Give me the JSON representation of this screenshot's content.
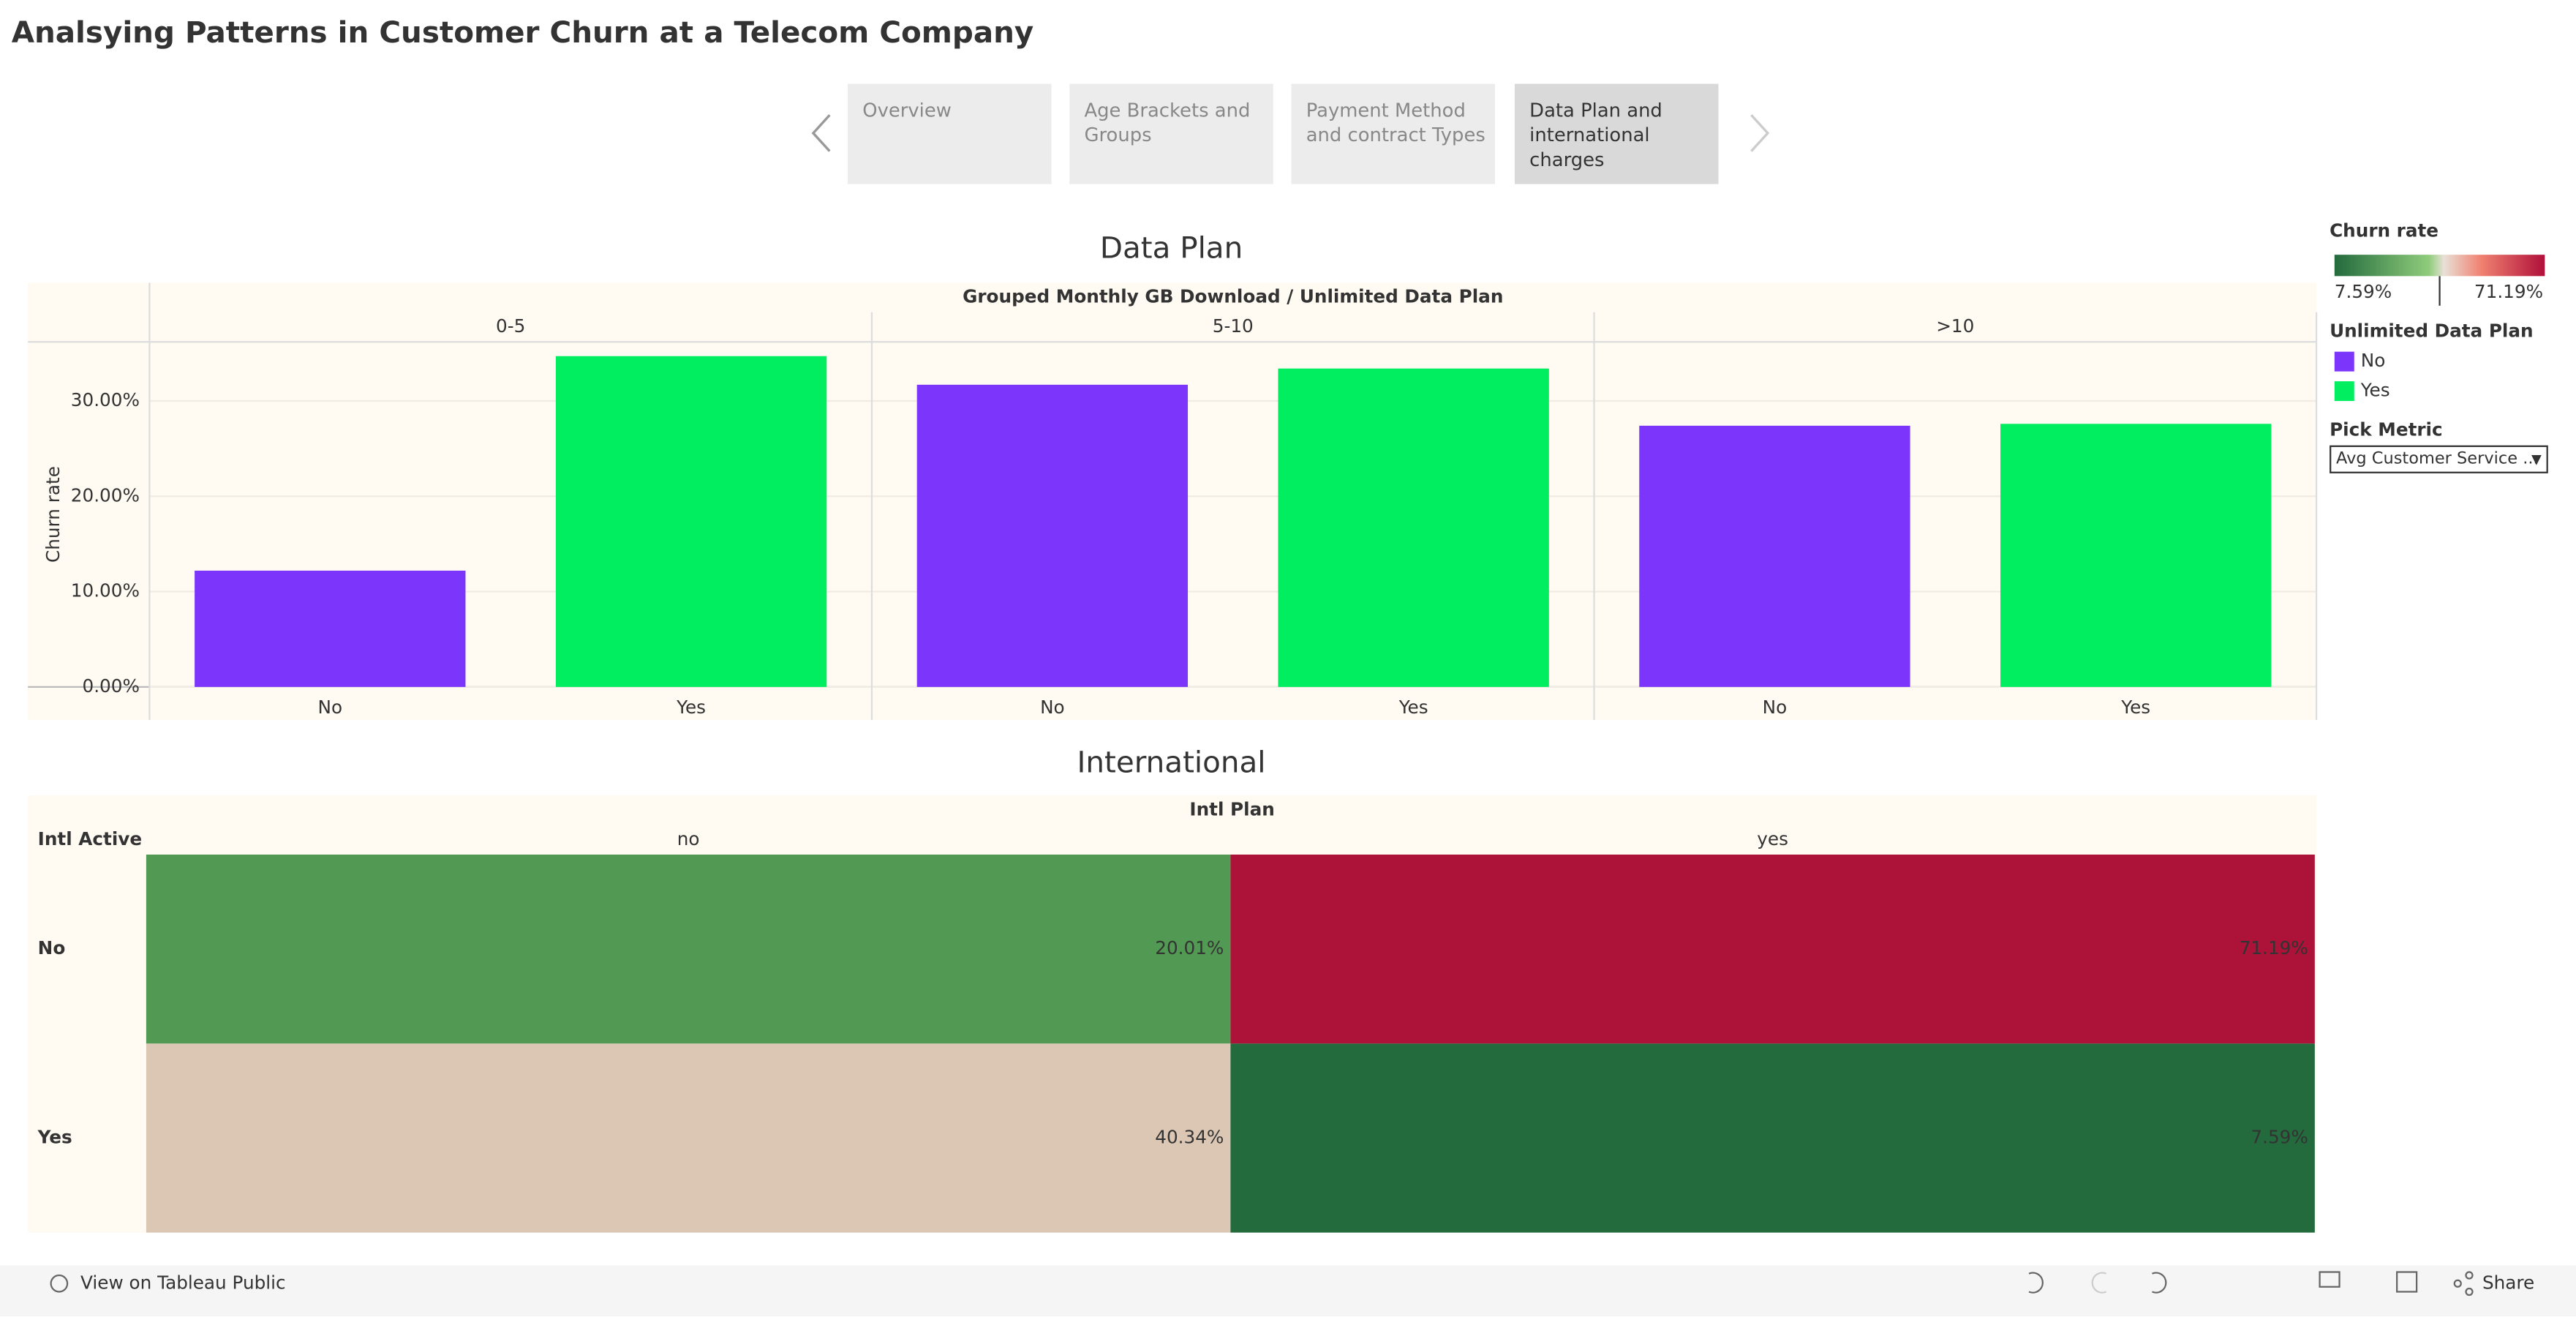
{
  "header": {
    "title": "Analsying Patterns in Customer Churn at a Telecom Company"
  },
  "tabs": [
    "Overview",
    "Age Brackets and Groups",
    "Payment Method and contract Types",
    "Data Plan and international charges"
  ],
  "chart_data": [
    {
      "type": "bar",
      "title": "Data Plan",
      "header": "Grouped Monthly GB Download / Unlimited Data Plan",
      "y_label": "Churn rate",
      "categories": [
        "0-5",
        "5-10",
        ">10"
      ],
      "series": [
        {
          "name": "No",
          "color": "#7b35fb",
          "values": [
            12.2,
            31.7,
            27.4
          ]
        },
        {
          "name": "Yes",
          "color": "#00ee5f",
          "values": [
            34.7,
            33.4,
            27.6
          ]
        }
      ],
      "ylim": [
        0,
        36.2
      ],
      "yticks": [
        {
          "value": 0,
          "label": "0.00%"
        },
        {
          "value": 10,
          "label": "10.00%"
        },
        {
          "value": 20,
          "label": "20.00%"
        },
        {
          "value": 30,
          "label": "30.00%"
        }
      ],
      "grid": true
    },
    {
      "type": "heatmap",
      "title": "International",
      "col_header": "Intl Plan",
      "row_header": "Intl Active",
      "columns": [
        "no",
        "yes"
      ],
      "rows": [
        "No",
        "Yes"
      ],
      "values": [
        [
          20.01,
          71.19
        ],
        [
          40.34,
          7.59
        ]
      ],
      "value_labels": [
        [
          "20.01%",
          "71.19%"
        ],
        [
          "40.34%",
          "7.59%"
        ]
      ],
      "colors": [
        [
          "#529a53",
          "#ad1238"
        ],
        [
          "#dcc7b4",
          "#236a3d"
        ]
      ]
    }
  ],
  "legend": {
    "color_title": "Churn rate",
    "min": 7.59,
    "min_label": "7.59%",
    "max": 71.19,
    "max_label": "71.19%",
    "series_title": "Unlimited Data Plan",
    "metric_title": "Pick Metric",
    "metric_value": "Avg Customer Service ..."
  },
  "footer": {
    "link": "View on Tableau Public",
    "share": "Share"
  }
}
